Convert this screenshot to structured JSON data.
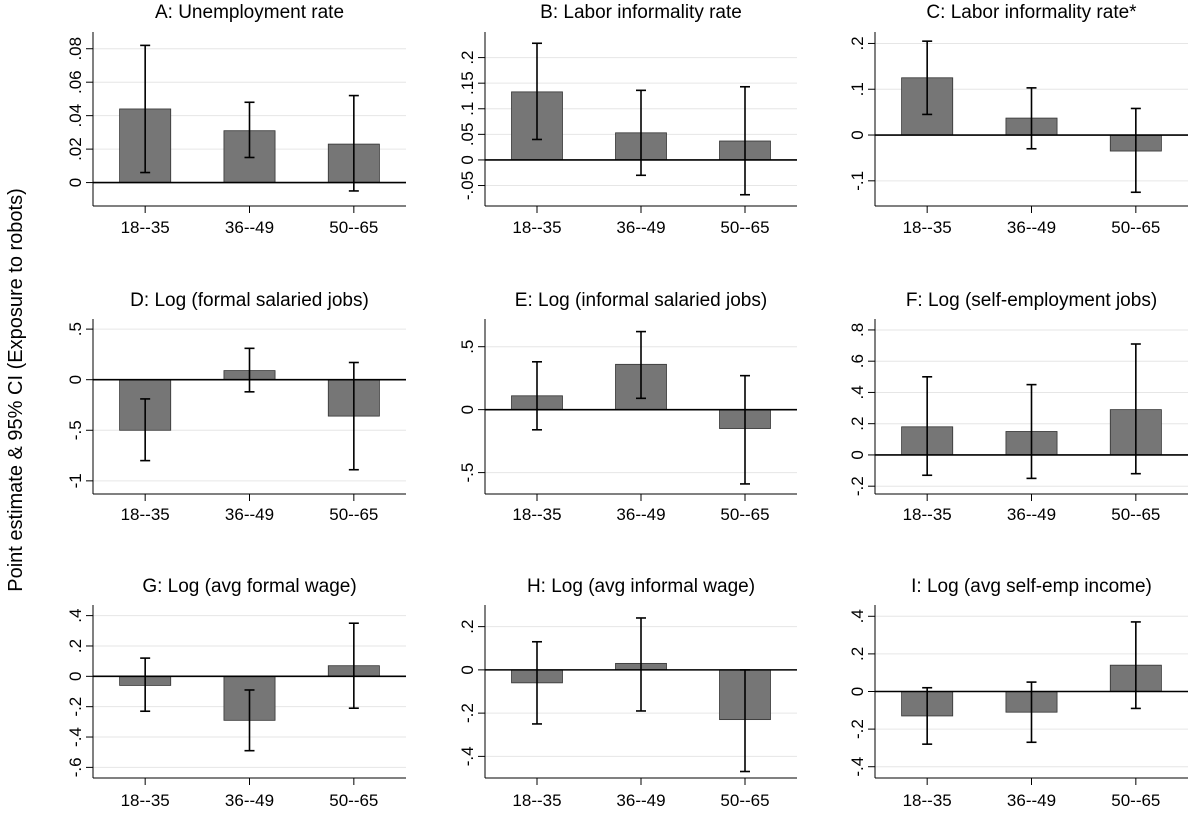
{
  "figure": {
    "ylabel": "Point estimate & 95% CI (Exposure to robots)",
    "bar_color": "#767676",
    "grid_color": "#e6e6e6"
  },
  "chart_data": [
    {
      "type": "bar",
      "title": "A: Unemployment rate",
      "categories": [
        "18--35",
        "36--49",
        "50--65"
      ],
      "values": [
        0.044,
        0.031,
        0.023
      ],
      "ci_low": [
        0.006,
        0.015,
        -0.005
      ],
      "ci_high": [
        0.082,
        0.048,
        0.052
      ],
      "ylim": [
        -0.014,
        0.09
      ],
      "yticks": [
        0,
        0.02,
        0.04,
        0.06,
        0.08
      ],
      "yticklabels": [
        "0",
        ".02",
        ".04",
        ".06",
        ".08"
      ],
      "ygrid": true
    },
    {
      "type": "bar",
      "title": "B: Labor informality rate",
      "categories": [
        "18--35",
        "36--49",
        "50--65"
      ],
      "values": [
        0.133,
        0.053,
        0.037
      ],
      "ci_low": [
        0.04,
        -0.03,
        -0.068
      ],
      "ci_high": [
        0.228,
        0.136,
        0.143
      ],
      "ylim": [
        -0.09,
        0.25
      ],
      "yticks": [
        -0.05,
        0,
        0.05,
        0.1,
        0.15,
        0.2
      ],
      "yticklabels": [
        "-.05",
        "0",
        ".05",
        ".1",
        ".15",
        ".2"
      ],
      "ygrid": true
    },
    {
      "type": "bar",
      "title": "C: Labor informality rate*",
      "categories": [
        "18--35",
        "36--49",
        "50--65"
      ],
      "values": [
        0.125,
        0.037,
        -0.035
      ],
      "ci_low": [
        0.045,
        -0.03,
        -0.125
      ],
      "ci_high": [
        0.205,
        0.103,
        0.058
      ],
      "ylim": [
        -0.155,
        0.225
      ],
      "yticks": [
        -0.1,
        0,
        0.1,
        0.2
      ],
      "yticklabels": [
        "-.1",
        "0",
        ".1",
        ".2"
      ],
      "ygrid": true
    },
    {
      "type": "bar",
      "title": "D: Log (formal salaried jobs)",
      "categories": [
        "18--35",
        "36--49",
        "50--65"
      ],
      "values": [
        -0.5,
        0.09,
        -0.36
      ],
      "ci_low": [
        -0.8,
        -0.12,
        -0.89
      ],
      "ci_high": [
        -0.19,
        0.31,
        0.17
      ],
      "ylim": [
        -1.13,
        0.6
      ],
      "yticks": [
        -1,
        -0.5,
        0,
        0.5
      ],
      "yticklabels": [
        "-1",
        "-.5",
        "0",
        ".5"
      ],
      "ygrid": true
    },
    {
      "type": "bar",
      "title": "E: Log (informal salaried jobs)",
      "categories": [
        "18--35",
        "36--49",
        "50--65"
      ],
      "values": [
        0.11,
        0.36,
        -0.15
      ],
      "ci_low": [
        -0.16,
        0.09,
        -0.59
      ],
      "ci_high": [
        0.38,
        0.62,
        0.27
      ],
      "ylim": [
        -0.67,
        0.72
      ],
      "yticks": [
        -0.5,
        0,
        0.5
      ],
      "yticklabels": [
        "-.5",
        "0",
        ".5"
      ],
      "ygrid": true
    },
    {
      "type": "bar",
      "title": "F: Log (self-employment jobs)",
      "categories": [
        "18--35",
        "36--49",
        "50--65"
      ],
      "values": [
        0.18,
        0.15,
        0.29
      ],
      "ci_low": [
        -0.13,
        -0.15,
        -0.12
      ],
      "ci_high": [
        0.5,
        0.45,
        0.71
      ],
      "ylim": [
        -0.25,
        0.87
      ],
      "yticks": [
        -0.2,
        0,
        0.2,
        0.4,
        0.6,
        0.8
      ],
      "yticklabels": [
        "-.2",
        "0",
        ".2",
        ".4",
        ".6",
        ".8"
      ],
      "ygrid": true
    },
    {
      "type": "bar",
      "title": "G: Log (avg formal wage)",
      "categories": [
        "18--35",
        "36--49",
        "50--65"
      ],
      "values": [
        -0.06,
        -0.29,
        0.07
      ],
      "ci_low": [
        -0.23,
        -0.49,
        -0.21
      ],
      "ci_high": [
        0.12,
        -0.09,
        0.35
      ],
      "ylim": [
        -0.67,
        0.47
      ],
      "yticks": [
        -0.6,
        -0.4,
        -0.2,
        0,
        0.2,
        0.4
      ],
      "yticklabels": [
        "-.6",
        "-.4",
        "-.2",
        "0",
        ".2",
        ".4"
      ],
      "ygrid": true
    },
    {
      "type": "bar",
      "title": "H: Log (avg informal wage)",
      "categories": [
        "18--35",
        "36--49",
        "50--65"
      ],
      "values": [
        -0.06,
        0.03,
        -0.23
      ],
      "ci_low": [
        -0.25,
        -0.19,
        -0.47
      ],
      "ci_high": [
        0.13,
        0.24,
        0.0
      ],
      "ylim": [
        -0.5,
        0.3
      ],
      "yticks": [
        -0.4,
        -0.2,
        0,
        0.2
      ],
      "yticklabels": [
        "-.4",
        "-.2",
        "0",
        ".2"
      ],
      "ygrid": true
    },
    {
      "type": "bar",
      "title": "I: Log (avg self-emp income)",
      "categories": [
        "18--35",
        "36--49",
        "50--65"
      ],
      "values": [
        -0.13,
        -0.11,
        0.14
      ],
      "ci_low": [
        -0.28,
        -0.27,
        -0.09
      ],
      "ci_high": [
        0.02,
        0.05,
        0.37
      ],
      "ylim": [
        -0.46,
        0.46
      ],
      "yticks": [
        -0.4,
        -0.2,
        0,
        0.2,
        0.4
      ],
      "yticklabels": [
        "-.4",
        "-.2",
        "0",
        ".2",
        ".4"
      ],
      "ygrid": true
    }
  ]
}
